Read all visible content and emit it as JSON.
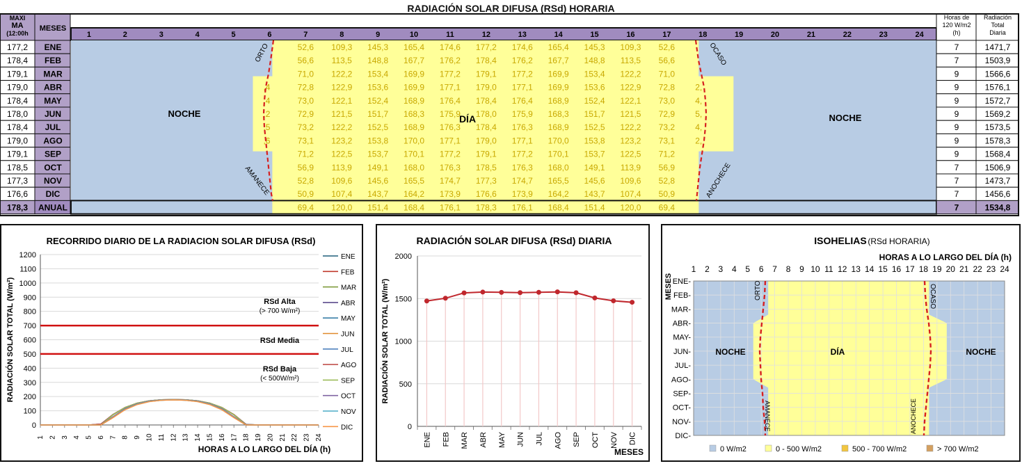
{
  "title": "RADIACIÓN SOLAR DIFUSA (RSd) HORARIA",
  "table": {
    "col_max_header": [
      "MAXI",
      "MA",
      "(12:00h"
    ],
    "col_months_header": "MESES",
    "col_hours_header": [
      "Horas de",
      "120 W/m2",
      "(h)"
    ],
    "col_total_header": [
      "Radiación",
      "Total",
      "Diaria"
    ],
    "hours": [
      "1",
      "2",
      "3",
      "4",
      "5",
      "6",
      "7",
      "8",
      "9",
      "10",
      "11",
      "12",
      "13",
      "14",
      "15",
      "16",
      "17",
      "18",
      "19",
      "20",
      "21",
      "22",
      "23",
      "24"
    ],
    "labels": {
      "night": "NOCHE",
      "day": "DÍA",
      "orto": "ORTO",
      "ocaso": "OCASO",
      "amanece": "AMANECE",
      "anochece": "ANOCHECE"
    },
    "rows": [
      {
        "max": "177,2",
        "month": "ENE",
        "v7": [
          "52,6",
          "109,3",
          "145,3",
          "165,4",
          "174,6",
          "177,2",
          "174,6",
          "165,4",
          "145,3",
          "109,3",
          "52,6"
        ],
        "h6": "",
        "h18": "",
        "hours": "7",
        "total": "1471,7"
      },
      {
        "max": "178,4",
        "month": "FEB",
        "v7": [
          "56,6",
          "113,5",
          "148,8",
          "167,7",
          "176,2",
          "178,4",
          "176,2",
          "167,7",
          "148,8",
          "113,5",
          "56,6"
        ],
        "h6": "",
        "h18": "",
        "hours": "7",
        "total": "1503,9"
      },
      {
        "max": "179,1",
        "month": "MAR",
        "v7": [
          "71,0",
          "122,2",
          "153,4",
          "169,9",
          "177,2",
          "179,1",
          "177,2",
          "169,9",
          "153,4",
          "122,2",
          "71,0"
        ],
        "h6": "",
        "h18": "",
        "hours": "9",
        "total": "1566,6"
      },
      {
        "max": "179,0",
        "month": "ABR",
        "v7": [
          "72,8",
          "122,9",
          "153,6",
          "169,9",
          "177,1",
          "179,0",
          "177,1",
          "169,9",
          "153,6",
          "122,9",
          "72,8"
        ],
        "h6": ",4",
        "h18": "2,",
        "hours": "9",
        "total": "1576,1"
      },
      {
        "max": "178,4",
        "month": "MAY",
        "v7": [
          "73,0",
          "122,1",
          "152,4",
          "168,9",
          "176,4",
          "178,4",
          "176,4",
          "168,9",
          "152,4",
          "122,1",
          "73,0"
        ],
        "h6": ",4",
        "h18": "4,",
        "hours": "9",
        "total": "1572,7"
      },
      {
        "max": "178,0",
        "month": "JUN",
        "v7": [
          "72,9",
          "121,5",
          "151,7",
          "168,3",
          "175,9",
          "178,0",
          "175,9",
          "168,3",
          "151,7",
          "121,5",
          "72,9"
        ],
        "h6": ",2",
        "h18": "5,",
        "hours": "9",
        "total": "1569,2"
      },
      {
        "max": "178,4",
        "month": "JUL",
        "v7": [
          "73,2",
          "122,2",
          "152,5",
          "168,9",
          "176,3",
          "178,4",
          "176,3",
          "168,9",
          "152,5",
          "122,2",
          "73,2"
        ],
        "h6": ",5",
        "h18": "4,",
        "hours": "9",
        "total": "1573,5"
      },
      {
        "max": "179,0",
        "month": "AGO",
        "v7": [
          "73,1",
          "123,2",
          "153,8",
          "170,0",
          "177,1",
          "179,0",
          "177,1",
          "170,0",
          "153,8",
          "123,2",
          "73,1"
        ],
        "h6": ",6",
        "h18": "2,",
        "hours": "9",
        "total": "1578,3"
      },
      {
        "max": "179,1",
        "month": "SEP",
        "v7": [
          "71,2",
          "122,5",
          "153,7",
          "170,1",
          "177,2",
          "179,1",
          "177,2",
          "170,1",
          "153,7",
          "122,5",
          "71,2"
        ],
        "h6": "",
        "h18": "",
        "hours": "9",
        "total": "1568,4"
      },
      {
        "max": "178,5",
        "month": "OCT",
        "v7": [
          "56,9",
          "113,9",
          "149,1",
          "168,0",
          "176,3",
          "178,5",
          "176,3",
          "168,0",
          "149,1",
          "113,9",
          "56,9"
        ],
        "h6": "",
        "h18": "",
        "hours": "7",
        "total": "1506,9"
      },
      {
        "max": "177,3",
        "month": "NOV",
        "v7": [
          "52,8",
          "109,6",
          "145,6",
          "165,5",
          "174,7",
          "177,3",
          "174,7",
          "165,5",
          "145,6",
          "109,6",
          "52,8"
        ],
        "h6": "",
        "h18": "",
        "hours": "7",
        "total": "1473,7"
      },
      {
        "max": "176,6",
        "month": "DIC",
        "v7": [
          "50,9",
          "107,4",
          "143,7",
          "164,2",
          "173,9",
          "176,6",
          "173,9",
          "164,2",
          "143,7",
          "107,4",
          "50,9"
        ],
        "h6": "",
        "h18": "",
        "hours": "7",
        "total": "1456,6"
      }
    ],
    "annual": {
      "max": "178,3",
      "month": "ANUAL",
      "v7": [
        "69,4",
        "120,0",
        "151,4",
        "168,4",
        "176,1",
        "178,3",
        "176,1",
        "168,4",
        "151,4",
        "120,0",
        "69,4"
      ],
      "hours": "7",
      "total": "1534,8"
    }
  },
  "panels": {
    "left": {
      "title": "RECORRIDO  DIARIO DE LA RADIACION SOLAR DIFUSA  (RSd)",
      "ylabel": "RADIACIÓN SOLAR TOTAL (W/m²)",
      "xlabel": "HORAS A LO LARGO DEL DÍA (h)",
      "ann_high": [
        "RSd Alta",
        "(> 700 W/m²)"
      ],
      "ann_mid": [
        "RSd Media"
      ],
      "ann_low": [
        "RSd Baja",
        "(< 500W/m²)"
      ]
    },
    "mid": {
      "title": "RADIACIÓN SOLAR DIFUSA (RSd) DIARIA",
      "ylabel": "RADIACIÓN SOLAR TOTAL (W/m²)",
      "xlabel": "MESES"
    },
    "right": {
      "title": "ISOHELIAS",
      "title_suffix": "(RSd HORARIA)",
      "xlabel": "HORAS A LO LARGO DEL DÍA (h)",
      "ylabel": "MESES",
      "months": [
        "ENE-",
        "FEB-",
        "MAR-",
        "ABR-",
        "MAY-",
        "JUN-",
        "JUL-",
        "AGO-",
        "SEP-",
        "OCT-",
        "NOV-",
        "DIC-"
      ],
      "labels": {
        "night_l": "NOCHE",
        "day": "DÍA",
        "night_r": "NOCHE",
        "orto": "ORTO",
        "ocaso": "OCASO",
        "amanece": "AMANECE",
        "anochece": "ANOCHECE"
      },
      "legend": [
        "0 W/m2",
        "0 - 500 W/m2",
        "500 - 700 W/m2",
        "> 700 W/m2"
      ]
    }
  },
  "chart_data": [
    {
      "type": "line",
      "title": "RECORRIDO  DIARIO DE LA RADIACION SOLAR DIFUSA  (RSd)",
      "xlabel": "HORAS A LO LARGO DEL DÍA (h)",
      "ylabel": "RADIACIÓN SOLAR TOTAL (W/m²)",
      "x": [
        1,
        2,
        3,
        4,
        5,
        6,
        7,
        8,
        9,
        10,
        11,
        12,
        13,
        14,
        15,
        16,
        17,
        18,
        19,
        20,
        21,
        22,
        23,
        24
      ],
      "ylim": [
        0,
        1200
      ],
      "yticks": [
        0,
        100,
        200,
        300,
        400,
        500,
        600,
        700,
        800,
        900,
        1000,
        1100,
        1200
      ],
      "thresholds": [
        700,
        500
      ],
      "series": [
        {
          "name": "ENE",
          "color": "#1f5f7a",
          "values": [
            0,
            0,
            0,
            0,
            0,
            0,
            52.6,
            109.3,
            145.3,
            165.4,
            174.6,
            177.2,
            174.6,
            165.4,
            145.3,
            109.3,
            52.6,
            0,
            0,
            0,
            0,
            0,
            0,
            0
          ]
        },
        {
          "name": "FEB",
          "color": "#c0392b",
          "values": [
            0,
            0,
            0,
            0,
            0,
            0,
            56.6,
            113.5,
            148.8,
            167.7,
            176.2,
            178.4,
            176.2,
            167.7,
            148.8,
            113.5,
            56.6,
            0,
            0,
            0,
            0,
            0,
            0,
            0
          ]
        },
        {
          "name": "MAR",
          "color": "#7f9a3a",
          "values": [
            0,
            0,
            0,
            0,
            0,
            0,
            71.0,
            122.2,
            153.4,
            169.9,
            177.2,
            179.1,
            177.2,
            169.9,
            153.4,
            122.2,
            71.0,
            0,
            0,
            0,
            0,
            0,
            0,
            0
          ]
        },
        {
          "name": "ABR",
          "color": "#5b4a8b",
          "values": [
            0,
            0,
            0,
            0,
            0,
            5.4,
            72.8,
            122.9,
            153.6,
            169.9,
            177.1,
            179.0,
            177.1,
            169.9,
            153.6,
            122.9,
            72.8,
            2.0,
            0,
            0,
            0,
            0,
            0,
            0
          ]
        },
        {
          "name": "MAY",
          "color": "#3a7fa8",
          "values": [
            0,
            0,
            0,
            0,
            0,
            5.4,
            73.0,
            122.1,
            152.4,
            168.9,
            176.4,
            178.4,
            176.4,
            168.9,
            152.4,
            122.1,
            73.0,
            4.0,
            0,
            0,
            0,
            0,
            0,
            0
          ]
        },
        {
          "name": "JUN",
          "color": "#e08a2a",
          "values": [
            0,
            0,
            0,
            0,
            0,
            6.2,
            72.9,
            121.5,
            151.7,
            168.3,
            175.9,
            178.0,
            175.9,
            168.3,
            151.7,
            121.5,
            72.9,
            5.0,
            0,
            0,
            0,
            0,
            0,
            0
          ]
        },
        {
          "name": "JUL",
          "color": "#4f81bd",
          "values": [
            0,
            0,
            0,
            0,
            0,
            6.5,
            73.2,
            122.2,
            152.5,
            168.9,
            176.3,
            178.4,
            176.3,
            168.9,
            152.5,
            122.2,
            73.2,
            4.0,
            0,
            0,
            0,
            0,
            0,
            0
          ]
        },
        {
          "name": "AGO",
          "color": "#c0504d",
          "values": [
            0,
            0,
            0,
            0,
            0,
            6.6,
            73.1,
            123.2,
            153.8,
            170.0,
            177.1,
            179.0,
            177.1,
            170.0,
            153.8,
            123.2,
            73.1,
            2.0,
            0,
            0,
            0,
            0,
            0,
            0
          ]
        },
        {
          "name": "SEP",
          "color": "#9bbb59",
          "values": [
            0,
            0,
            0,
            0,
            0,
            0,
            71.2,
            122.5,
            153.7,
            170.1,
            177.2,
            179.1,
            177.2,
            170.1,
            153.7,
            122.5,
            71.2,
            0,
            0,
            0,
            0,
            0,
            0,
            0
          ]
        },
        {
          "name": "OCT",
          "color": "#8064a2",
          "values": [
            0,
            0,
            0,
            0,
            0,
            0,
            56.9,
            113.9,
            149.1,
            168.0,
            176.3,
            178.5,
            176.3,
            168.0,
            149.1,
            113.9,
            56.9,
            0,
            0,
            0,
            0,
            0,
            0,
            0
          ]
        },
        {
          "name": "NOV",
          "color": "#4bacc6",
          "values": [
            0,
            0,
            0,
            0,
            0,
            0,
            52.8,
            109.6,
            145.6,
            165.5,
            174.7,
            177.3,
            174.7,
            165.5,
            145.6,
            109.6,
            52.8,
            0,
            0,
            0,
            0,
            0,
            0,
            0
          ]
        },
        {
          "name": "DIC",
          "color": "#f79646",
          "values": [
            0,
            0,
            0,
            0,
            0,
            0,
            50.9,
            107.4,
            143.7,
            164.2,
            173.9,
            176.6,
            173.9,
            164.2,
            143.7,
            107.4,
            50.9,
            0,
            0,
            0,
            0,
            0,
            0,
            0
          ]
        }
      ]
    },
    {
      "type": "line",
      "title": "RADIACIÓN SOLAR DIFUSA (RSd) DIARIA",
      "xlabel": "MESES",
      "ylabel": "RADIACIÓN SOLAR TOTAL (W/m²)",
      "categories": [
        "ENE",
        "FEB",
        "MAR",
        "ABR",
        "MAY",
        "JUN",
        "JUL",
        "AGO",
        "SEP",
        "OCT",
        "NOV",
        "DIC"
      ],
      "values": [
        1471.7,
        1503.9,
        1566.6,
        1576.1,
        1572.7,
        1569.2,
        1573.5,
        1578.3,
        1568.4,
        1506.9,
        1473.7,
        1456.6
      ],
      "ylim": [
        0,
        2000
      ],
      "yticks": [
        0,
        500,
        1000,
        1500,
        2000
      ]
    },
    {
      "type": "heatmap",
      "title": "ISOHELIAS",
      "xlabel": "HORAS A LO LARGO DEL DÍA (h)",
      "ylabel": "MESES",
      "x": [
        1,
        2,
        3,
        4,
        5,
        6,
        7,
        8,
        9,
        10,
        11,
        12,
        13,
        14,
        15,
        16,
        17,
        18,
        19,
        20,
        21,
        22,
        23,
        24
      ],
      "y": [
        "ENE",
        "FEB",
        "MAR",
        "ABR",
        "MAY",
        "JUN",
        "JUL",
        "AGO",
        "SEP",
        "OCT",
        "NOV",
        "DIC"
      ],
      "legend": [
        "0 W/m2",
        "0 - 500 W/m2",
        "500 - 700 W/m2",
        "> 700 W/m2"
      ],
      "legend_colors": [
        "#b8cce4",
        "#ffff99",
        "#f2c640",
        "#d4a060"
      ]
    }
  ]
}
